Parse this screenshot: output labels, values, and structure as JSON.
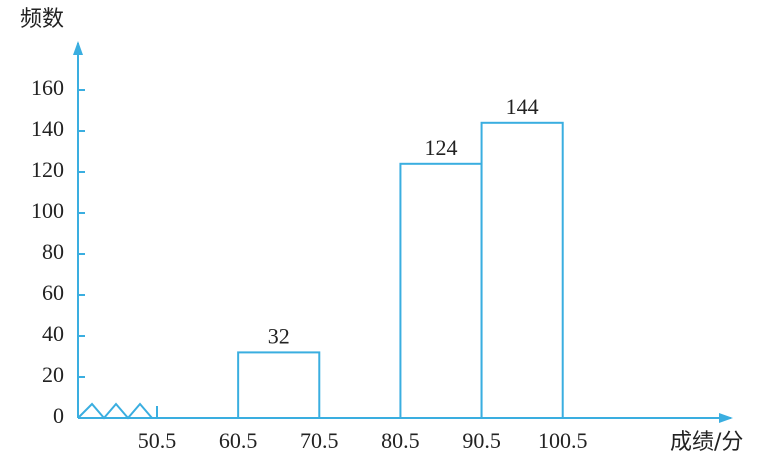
{
  "chart_data": {
    "type": "histogram",
    "y_label": "频数",
    "x_label": "成绩/分",
    "bins": [
      50.5,
      60.5,
      70.5,
      80.5,
      90.5,
      100.5
    ],
    "values": [
      null,
      32,
      null,
      124,
      144
    ],
    "color": "#3aaee0",
    "xlim": [
      50.5,
      120.5
    ],
    "xticks": [
      50.5,
      60.5,
      70.5,
      80.5,
      90.5,
      100.5
    ],
    "ylim": [
      0,
      180
    ],
    "yticks": [
      0,
      20,
      40,
      60,
      80,
      100,
      120,
      140,
      160
    ]
  }
}
